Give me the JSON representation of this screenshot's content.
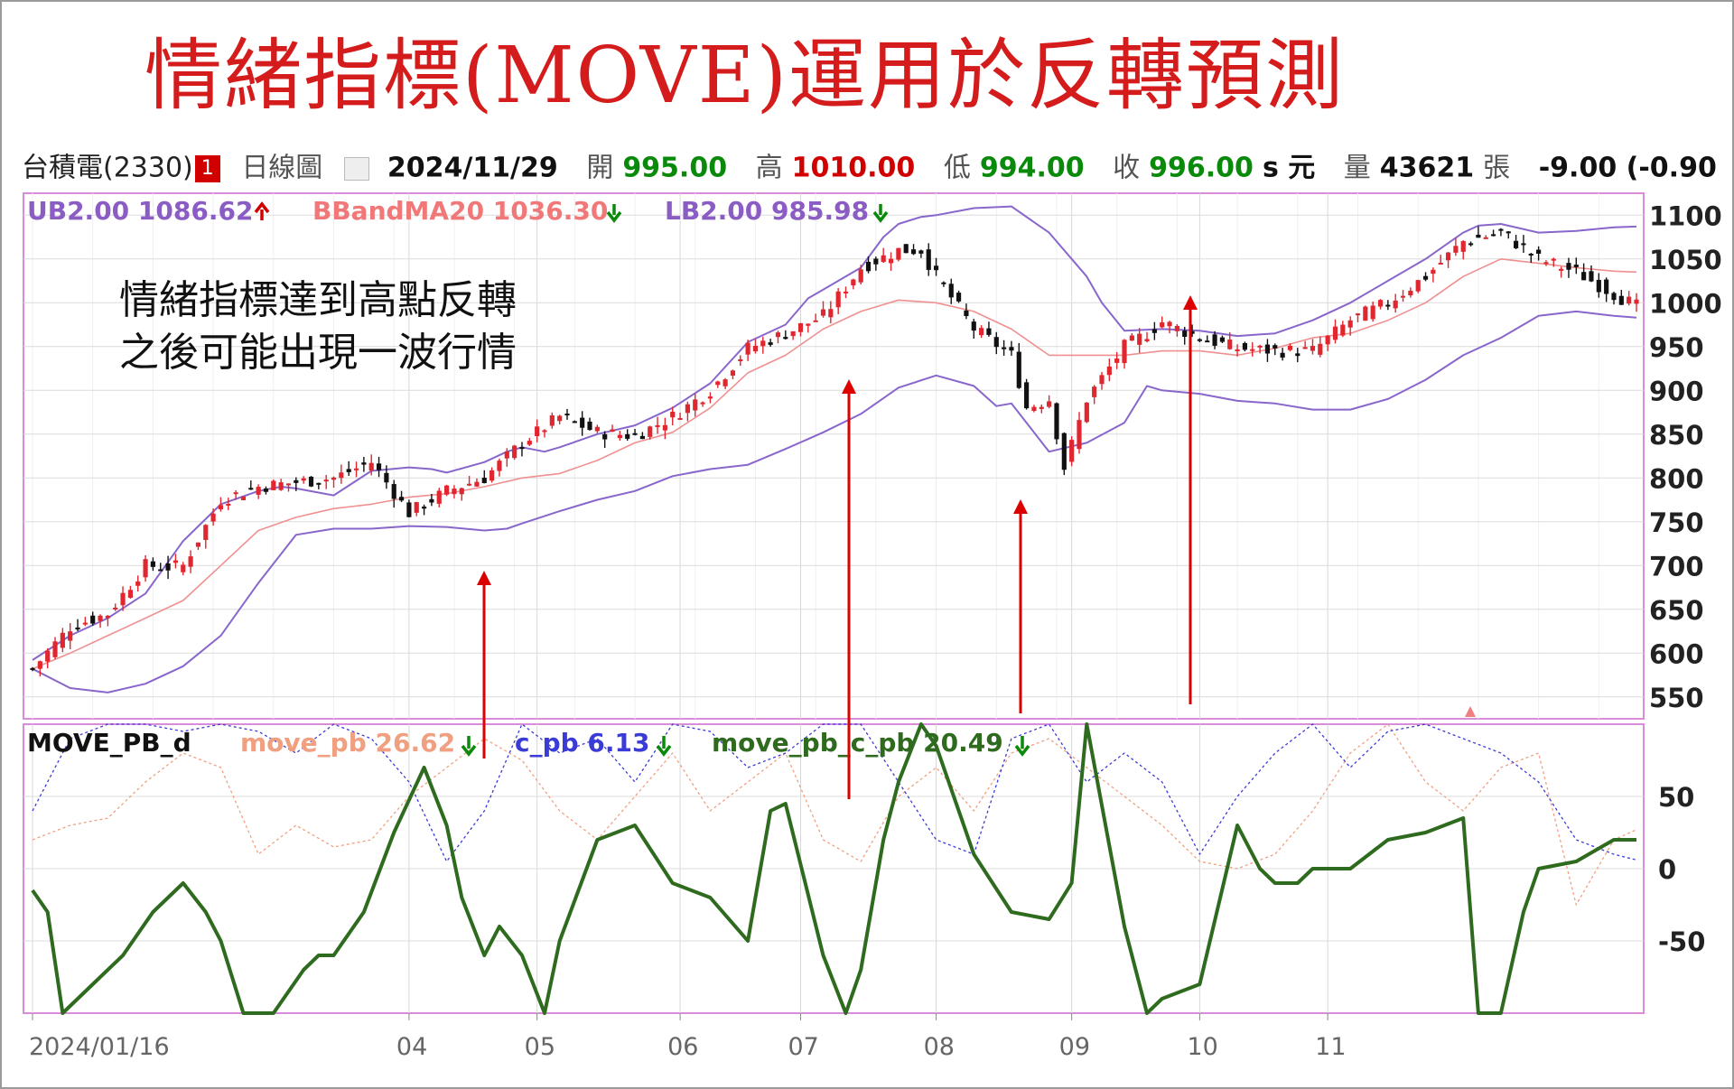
{
  "title": "情緒指標(MOVE)運用於反轉預測",
  "header": {
    "stock": "台積電(2330)",
    "badge": "1",
    "chart_type": "日線圖",
    "date": "2024/11/29",
    "open_label": "開",
    "open": "995.00",
    "high_label": "高",
    "high": "1010.00",
    "low_label": "低",
    "low": "994.00",
    "close_label": "收",
    "close": "996.00",
    "close_suffix": "s 元",
    "volume_label": "量",
    "volume": "43621",
    "volume_unit": "張",
    "change": "-9.00 (-0.90"
  },
  "annotation": {
    "line1": "情緒指標達到高點反轉",
    "line2": "之後可能出現一波行情"
  },
  "colors": {
    "title": "#d41c1c",
    "candle_up": "#e0262e",
    "candle_down": "#111111",
    "bollinger_band": "#8866cc",
    "ma20": "#f09090",
    "move_pb": "#f0a080",
    "c_pb": "#3b3bd6",
    "move_pb_c_pb": "#2e6b1e",
    "arrow": "#dd0000",
    "panel_border": "#d98cd9"
  },
  "chart_data": [
    {
      "type": "line",
      "name": "price",
      "legend": [
        {
          "label": "UB2.00 1086.62",
          "arrow": "up",
          "color": "#8a5cc4"
        },
        {
          "label": "BBandMA20 1036.30",
          "arrow": "down",
          "color": "#f07878"
        },
        {
          "label": "LB2.00 985.98",
          "arrow": "down",
          "color": "#8a5cc4"
        }
      ],
      "yticks": [
        550,
        600,
        650,
        700,
        750,
        800,
        850,
        900,
        950,
        1000,
        1050,
        1100
      ],
      "ylim": [
        525,
        1125
      ],
      "series": [
        {
          "name": "UB2.00",
          "x": [
            0,
            5,
            10,
            15,
            20,
            25,
            30,
            33,
            35,
            40,
            45,
            50,
            53,
            55,
            60,
            63,
            65,
            68,
            70,
            75,
            80,
            85,
            90,
            95,
            100,
            103,
            105,
            110,
            113,
            115,
            118,
            120,
            125,
            130,
            135,
            140,
            142,
            145,
            150,
            155,
            160,
            165,
            170,
            175,
            180,
            185,
            190,
            192,
            195,
            200,
            205,
            210,
            213
          ],
          "y": [
            592,
            620,
            640,
            668,
            728,
            770,
            785,
            790,
            788,
            780,
            808,
            812,
            810,
            806,
            818,
            830,
            835,
            830,
            835,
            850,
            860,
            880,
            908,
            955,
            975,
            1005,
            1015,
            1040,
            1075,
            1090,
            1098,
            1100,
            1108,
            1110,
            1080,
            1030,
            1000,
            968,
            970,
            968,
            962,
            965,
            980,
            1000,
            1025,
            1050,
            1080,
            1088,
            1090,
            1080,
            1082,
            1086,
            1087
          ]
        },
        {
          "name": "BBandMA20",
          "x": [
            0,
            5,
            10,
            15,
            20,
            25,
            30,
            35,
            40,
            45,
            50,
            55,
            60,
            65,
            70,
            75,
            80,
            85,
            90,
            95,
            100,
            105,
            110,
            115,
            120,
            125,
            130,
            135,
            140,
            145,
            150,
            155,
            160,
            165,
            170,
            175,
            180,
            185,
            190,
            195,
            200,
            205,
            210,
            213
          ],
          "y": [
            582,
            600,
            620,
            640,
            660,
            700,
            740,
            755,
            765,
            770,
            778,
            782,
            790,
            800,
            805,
            820,
            840,
            852,
            880,
            920,
            940,
            970,
            990,
            1003,
            1000,
            990,
            970,
            940,
            940,
            940,
            945,
            945,
            940,
            948,
            960,
            965,
            980,
            1000,
            1030,
            1050,
            1045,
            1040,
            1036,
            1035
          ]
        },
        {
          "name": "LB2.00",
          "x": [
            0,
            5,
            10,
            15,
            20,
            25,
            30,
            35,
            40,
            45,
            50,
            55,
            60,
            63,
            65,
            70,
            75,
            80,
            85,
            90,
            95,
            100,
            105,
            110,
            115,
            120,
            125,
            128,
            130,
            135,
            140,
            145,
            148,
            150,
            155,
            160,
            165,
            170,
            175,
            180,
            185,
            190,
            195,
            200,
            205,
            210,
            213
          ],
          "y": [
            582,
            560,
            555,
            565,
            585,
            620,
            680,
            735,
            742,
            742,
            745,
            744,
            740,
            742,
            748,
            762,
            775,
            785,
            802,
            810,
            815,
            833,
            852,
            873,
            903,
            917,
            905,
            882,
            885,
            830,
            840,
            863,
            905,
            900,
            896,
            888,
            885,
            878,
            878,
            890,
            912,
            940,
            960,
            985,
            990,
            985,
            983
          ]
        },
        {
          "name": "close",
          "x": [
            0,
            5,
            10,
            15,
            18,
            20,
            25,
            30,
            35,
            40,
            45,
            50,
            55,
            60,
            65,
            70,
            75,
            80,
            85,
            90,
            95,
            100,
            105,
            110,
            115,
            118,
            120,
            125,
            130,
            132,
            135,
            137,
            140,
            145,
            148,
            150,
            155,
            160,
            165,
            170,
            175,
            180,
            185,
            190,
            195,
            200,
            205,
            210,
            213
          ],
          "y": [
            582,
            630,
            645,
            700,
            698,
            700,
            775,
            790,
            795,
            800,
            818,
            760,
            785,
            800,
            840,
            870,
            852,
            848,
            870,
            900,
            948,
            965,
            985,
            1040,
            1060,
            1060,
            1030,
            970,
            940,
            880,
            890,
            812,
            890,
            950,
            965,
            978,
            960,
            948,
            945,
            945,
            980,
            1000,
            1030,
            1070,
            1080,
            1050,
            1035,
            1010,
            996
          ]
        }
      ]
    },
    {
      "type": "line",
      "name": "MOVE_PB_d",
      "legend": [
        {
          "label": "MOVE_PB_d",
          "color": "#111111"
        },
        {
          "label": "move_pb 26.62",
          "arrow": "down",
          "color": "#f0a080"
        },
        {
          "label": "c_pb 6.13",
          "arrow": "down",
          "color": "#3b3bd6"
        },
        {
          "label": "move_pb_c_pb 20.49",
          "arrow": "down",
          "color": "#2e6b1e"
        }
      ],
      "yticks": [
        -50,
        0,
        50
      ],
      "ylim": [
        -100,
        100
      ],
      "series": [
        {
          "name": "move_pb_c_pb",
          "x": [
            0,
            2,
            4,
            8,
            12,
            16,
            20,
            23,
            25,
            28,
            32,
            36,
            38,
            40,
            44,
            48,
            52,
            55,
            57,
            60,
            62,
            65,
            68,
            70,
            75,
            80,
            85,
            90,
            95,
            98,
            100,
            105,
            108,
            110,
            113,
            115,
            118,
            120,
            125,
            130,
            135,
            138,
            140,
            145,
            148,
            150,
            155,
            160,
            163,
            165,
            168,
            170,
            175,
            180,
            185,
            190,
            192,
            195,
            198,
            200,
            205,
            210,
            213
          ],
          "y": [
            -15,
            -30,
            -100,
            -80,
            -60,
            -30,
            -10,
            -30,
            -50,
            -100,
            -100,
            -70,
            -60,
            -60,
            -30,
            25,
            70,
            30,
            -20,
            -60,
            -40,
            -60,
            -100,
            -50,
            20,
            30,
            -10,
            -20,
            -50,
            40,
            45,
            -60,
            -100,
            -70,
            20,
            60,
            100,
            85,
            10,
            -30,
            -35,
            -10,
            100,
            -40,
            -100,
            -90,
            -80,
            30,
            0,
            -10,
            -10,
            0,
            0,
            20,
            25,
            35,
            -100,
            -100,
            -30,
            0,
            5,
            20,
            20
          ]
        },
        {
          "name": "move_pb",
          "x": [
            0,
            5,
            10,
            15,
            20,
            25,
            30,
            35,
            40,
            45,
            50,
            55,
            60,
            65,
            70,
            75,
            80,
            85,
            90,
            95,
            100,
            105,
            110,
            115,
            120,
            125,
            130,
            135,
            140,
            145,
            150,
            155,
            160,
            165,
            170,
            175,
            180,
            185,
            190,
            195,
            200,
            205,
            210,
            213
          ],
          "y": [
            20,
            30,
            35,
            60,
            80,
            70,
            10,
            30,
            15,
            20,
            50,
            70,
            90,
            75,
            40,
            20,
            50,
            80,
            40,
            60,
            80,
            20,
            5,
            50,
            70,
            40,
            80,
            90,
            70,
            50,
            30,
            5,
            0,
            10,
            40,
            80,
            100,
            60,
            40,
            70,
            80,
            -25,
            20,
            27
          ]
        },
        {
          "name": "c_pb",
          "x": [
            0,
            5,
            10,
            15,
            20,
            25,
            30,
            35,
            40,
            45,
            50,
            55,
            60,
            65,
            70,
            75,
            80,
            85,
            90,
            95,
            100,
            105,
            110,
            115,
            120,
            125,
            130,
            135,
            140,
            145,
            150,
            155,
            160,
            165,
            170,
            175,
            180,
            185,
            190,
            195,
            200,
            205,
            210,
            213
          ],
          "y": [
            40,
            90,
            100,
            100,
            95,
            100,
            95,
            80,
            100,
            90,
            60,
            5,
            40,
            100,
            80,
            90,
            60,
            100,
            95,
            70,
            80,
            100,
            100,
            60,
            20,
            10,
            90,
            100,
            60,
            80,
            60,
            10,
            50,
            80,
            100,
            70,
            95,
            100,
            90,
            80,
            60,
            20,
            10,
            6
          ]
        }
      ]
    }
  ],
  "x_axis": {
    "labels": [
      "2024/01/16",
      "04",
      "05",
      "06",
      "07",
      "08",
      "09",
      "10",
      "11"
    ]
  }
}
